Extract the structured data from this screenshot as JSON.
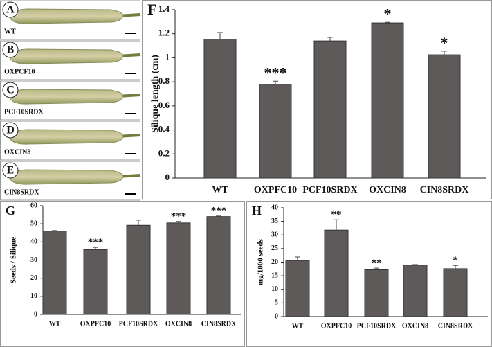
{
  "photo_panels": [
    {
      "letter": "A",
      "label": "WT"
    },
    {
      "letter": "B",
      "label": "OXPCF10"
    },
    {
      "letter": "C",
      "label": "PCF10SRDX"
    },
    {
      "letter": "D",
      "label": "OXCIN8"
    },
    {
      "letter": "E",
      "label": "CIN8SRDX"
    }
  ],
  "chart_data": [
    {
      "type": "bar",
      "panel_label": "F",
      "y_label": "Silique length (cm)",
      "categories": [
        "WT",
        "OXPFC10",
        "PCF10SRDX",
        "OXCIN8",
        "CIN8SRDX"
      ],
      "values": [
        1.155,
        0.78,
        1.14,
        1.29,
        1.025
      ],
      "errors": [
        0.055,
        0.025,
        0.03,
        0.005,
        0.03
      ],
      "annotations": [
        null,
        "***",
        null,
        "*",
        "*"
      ],
      "color": "#5e5a5a",
      "ylim": [
        0,
        1.4
      ],
      "yticks": [
        0,
        0.2,
        0.4,
        0.6,
        0.8,
        1,
        1.2,
        1.4
      ]
    },
    {
      "type": "bar",
      "panel_label": "G",
      "y_label": "Seeds / Silique",
      "categories": [
        "WT",
        "OXPFC10",
        "PCF10SRDX",
        "OXCIN8",
        "CIN8SRDX"
      ],
      "values": [
        46,
        35.8,
        49.2,
        50.5,
        54
      ],
      "errors": [
        0.3,
        1.2,
        2.8,
        0.8,
        0.3
      ],
      "annotations": [
        null,
        "***",
        null,
        "***",
        "***"
      ],
      "color": "#5e5a5a",
      "ylim": [
        0,
        60
      ],
      "yticks": [
        0,
        10,
        20,
        30,
        40,
        50,
        60
      ]
    },
    {
      "type": "bar",
      "panel_label": "H",
      "y_label": "mg/1000 seeds",
      "categories": [
        "WT",
        "OXPFC10",
        "PCF10SRDX",
        "OXCIN8",
        "CIN8SRDX"
      ],
      "values": [
        20.6,
        31.8,
        17.2,
        18.9,
        17.6
      ],
      "errors": [
        1.3,
        3.8,
        0.6,
        0.2,
        1.2
      ],
      "annotations": [
        null,
        "**",
        "**",
        null,
        "*"
      ],
      "color": "#5e5a5a",
      "ylim": [
        0,
        40
      ],
      "yticks": [
        0,
        5,
        10,
        15,
        20,
        25,
        30,
        35,
        40
      ]
    }
  ]
}
